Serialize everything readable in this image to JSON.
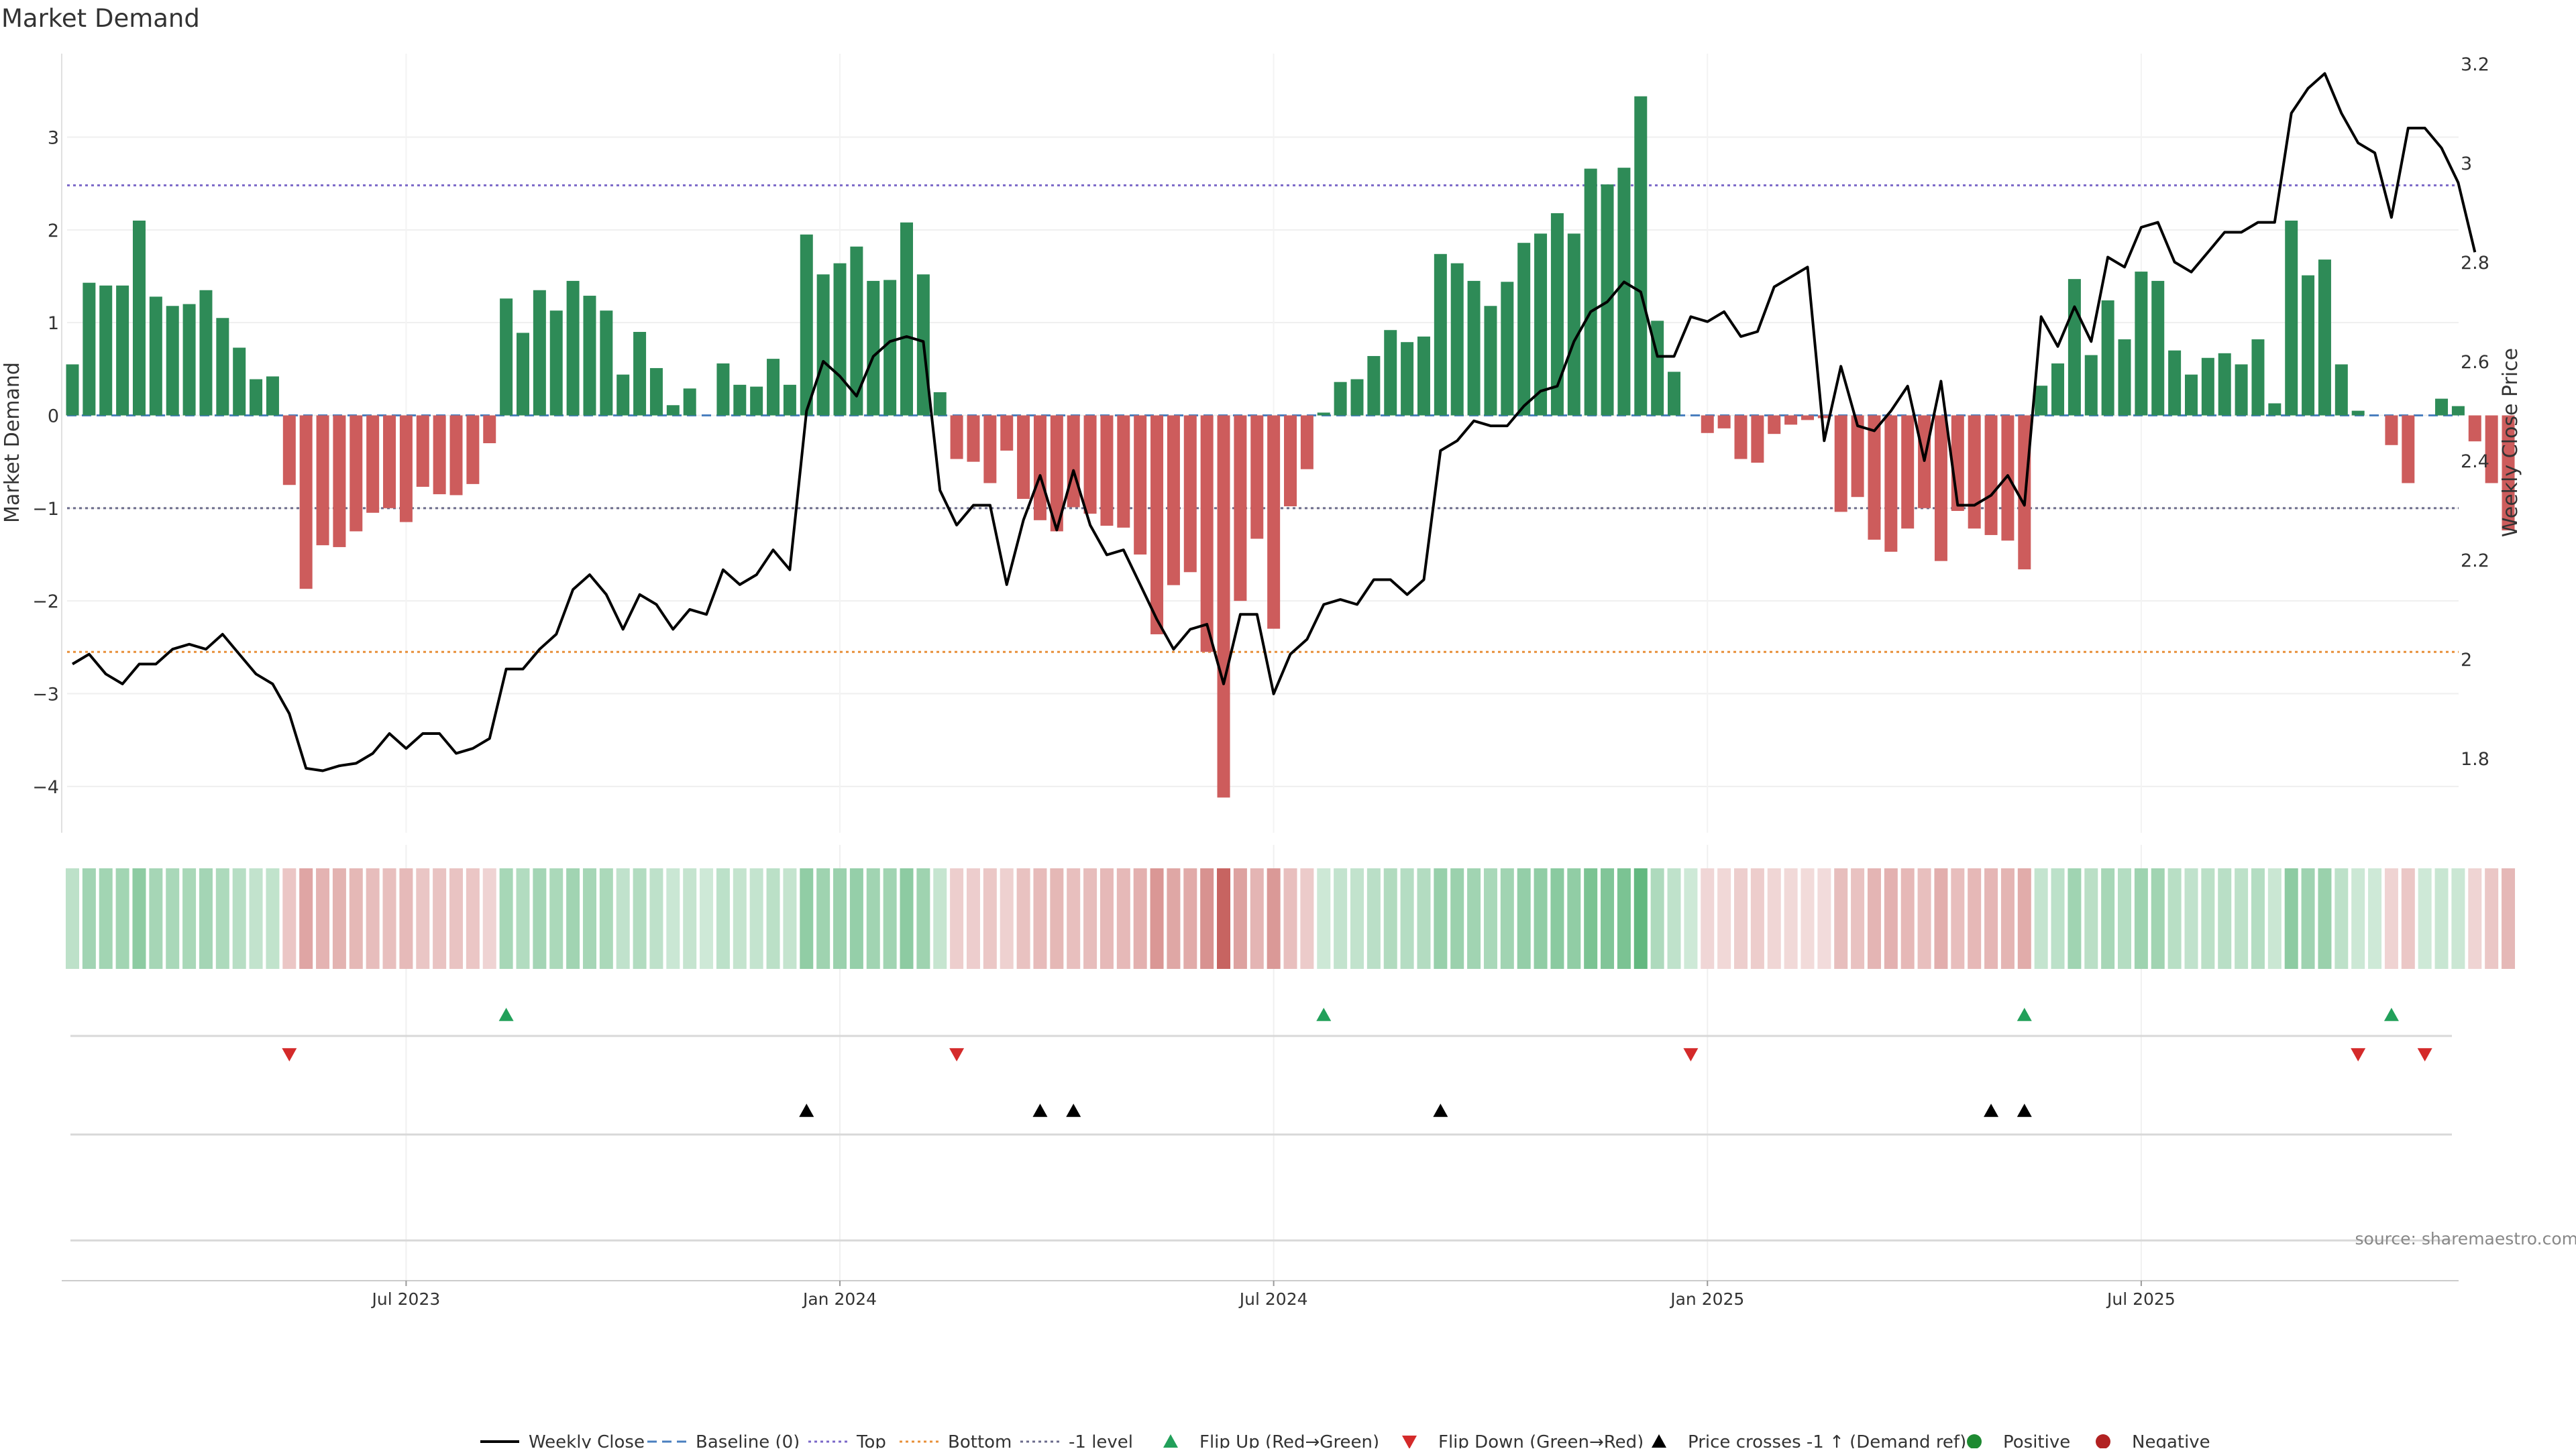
{
  "title": "Market Demand",
  "source_note": "source: sharemaestro.com",
  "chart_data": {
    "type": "bar",
    "title": "Market Demand",
    "ylabel": "Market Demand",
    "y2label": "Weekly Close Price",
    "ylim": [
      -4.5,
      3.9
    ],
    "y2lim": [
      1.65,
      3.22
    ],
    "yticks": [
      -4,
      -3,
      -2,
      -1,
      0,
      1,
      2,
      3
    ],
    "y2ticks": [
      1.8,
      2,
      2.2,
      2.4,
      2.6,
      2.8,
      3,
      3.2
    ],
    "x_ticks": [
      {
        "label": "Jul 2023",
        "week": 20
      },
      {
        "label": "Jan 2024",
        "week": 46
      },
      {
        "label": "Jul 2024",
        "week": 72
      },
      {
        "label": "Jan 2025",
        "week": 98
      },
      {
        "label": "Jul 2025",
        "week": 124
      }
    ],
    "reference_lines": [
      {
        "name": "Top",
        "value": 2.48,
        "color": "#7b68c8"
      },
      {
        "name": "Bottom",
        "value": -2.55,
        "color": "#e8903a"
      },
      {
        "name": "-1 level",
        "value": -1,
        "color": "#6b6b8b"
      }
    ],
    "demand": [
      0.55,
      1.43,
      1.4,
      1.4,
      2.1,
      1.28,
      1.18,
      1.2,
      1.35,
      1.05,
      0.73,
      0.39,
      0.42,
      -0.75,
      -1.87,
      -1.4,
      -1.42,
      -1.25,
      -1.05,
      -1.0,
      -1.15,
      -0.77,
      -0.85,
      -0.86,
      -0.74,
      -0.3,
      1.26,
      0.89,
      1.35,
      1.13,
      1.45,
      1.29,
      1.13,
      0.44,
      0.9,
      0.51,
      0.11,
      0.29,
      0.0,
      0.56,
      0.33,
      0.31,
      0.61,
      0.33,
      1.95,
      1.52,
      1.64,
      1.82,
      1.45,
      1.46,
      2.08,
      1.52,
      0.25,
      -0.47,
      -0.5,
      -0.73,
      -0.38,
      -0.9,
      -1.13,
      -1.25,
      -0.99,
      -1.06,
      -1.19,
      -1.21,
      -1.5,
      -2.36,
      -1.83,
      -1.69,
      -2.55,
      -4.12,
      -2.0,
      -1.33,
      -2.3,
      -0.98,
      -0.58,
      0.03,
      0.36,
      0.39,
      0.64,
      0.92,
      0.79,
      0.85,
      1.74,
      1.64,
      1.45,
      1.18,
      1.44,
      1.86,
      1.96,
      2.18,
      1.96,
      2.66,
      2.49,
      2.67,
      3.44,
      1.02,
      0.47,
      0.0,
      -0.19,
      -0.14,
      -0.47,
      -0.51,
      -0.2,
      -0.1,
      -0.05,
      -0.03,
      -1.04,
      -0.88,
      -1.34,
      -1.47,
      -1.22,
      -1.0,
      -1.57,
      -1.03,
      -1.22,
      -1.29,
      -1.35,
      -1.66,
      0.32,
      0.56,
      1.47,
      0.65,
      1.24,
      0.82,
      1.55,
      1.45,
      0.7,
      0.44,
      0.62,
      0.67,
      0.55,
      0.82,
      0.13,
      2.1,
      1.51,
      1.68,
      0.55,
      0.05,
      0.0,
      -0.32,
      -0.73,
      0.0,
      0.18,
      0.1,
      -0.28,
      -0.73,
      -1.24
    ],
    "close": [
      1.99,
      2.01,
      1.97,
      1.95,
      1.99,
      1.99,
      2.02,
      2.03,
      2.02,
      2.05,
      2.01,
      1.97,
      1.95,
      1.89,
      1.78,
      1.775,
      1.785,
      1.79,
      1.81,
      1.85,
      1.82,
      1.85,
      1.85,
      1.81,
      1.82,
      1.84,
      1.98,
      1.98,
      2.02,
      2.05,
      2.14,
      2.17,
      2.13,
      2.06,
      2.13,
      2.11,
      2.06,
      2.1,
      2.09,
      2.18,
      2.15,
      2.17,
      2.22,
      2.18,
      2.5,
      2.6,
      2.57,
      2.53,
      2.61,
      2.64,
      2.65,
      2.64,
      2.34,
      2.27,
      2.31,
      2.31,
      2.15,
      2.28,
      2.37,
      2.26,
      2.38,
      2.27,
      2.21,
      2.22,
      2.15,
      2.08,
      2.02,
      2.06,
      2.07,
      1.95,
      2.09,
      2.09,
      1.93,
      2.01,
      2.04,
      2.11,
      2.12,
      2.11,
      2.16,
      2.16,
      2.13,
      2.16,
      2.42,
      2.44,
      2.48,
      2.47,
      2.47,
      2.51,
      2.54,
      2.55,
      2.64,
      2.7,
      2.72,
      2.76,
      2.74,
      2.61,
      2.61,
      2.69,
      2.68,
      2.7,
      2.65,
      2.66,
      2.75,
      2.77,
      2.79,
      2.44,
      2.59,
      2.47,
      2.46,
      2.5,
      2.55,
      2.4,
      2.56,
      2.31,
      2.31,
      2.33,
      2.37,
      2.31,
      2.69,
      2.63,
      2.71,
      2.64,
      2.81,
      2.79,
      2.87,
      2.88,
      2.8,
      2.78,
      2.82,
      2.86,
      2.86,
      2.88,
      2.88,
      3.1,
      3.15,
      3.18,
      3.1,
      3.04,
      3.02,
      2.89,
      3.07,
      3.07,
      3.03,
      2.96,
      2.82
    ]
  },
  "markers": {
    "flip_up_weeks": [
      26,
      75,
      117,
      139
    ],
    "flip_down_weeks": [
      13,
      53,
      97,
      137,
      141
    ],
    "price_cross_weeks": [
      44,
      58,
      60,
      82,
      115,
      117
    ]
  },
  "legend": [
    {
      "label": "Weekly Close",
      "kind": "solid-line",
      "color": "#000000"
    },
    {
      "label": "Baseline (0)",
      "kind": "dash-line",
      "color": "#4a7fbf"
    },
    {
      "label": "Top",
      "kind": "dot-line",
      "color": "#7b68c8"
    },
    {
      "label": "Bottom",
      "kind": "dot-line",
      "color": "#e8903a"
    },
    {
      "label": "-1 level",
      "kind": "dot-line",
      "color": "#6b6b8b"
    },
    {
      "label": "Flip Up (Red→Green)",
      "kind": "tri-up",
      "color": "#22a05a"
    },
    {
      "label": "Flip Down (Green→Red)",
      "kind": "tri-down",
      "color": "#d42a2a"
    },
    {
      "label": "Price crosses -1 ↑ (Demand ref)",
      "kind": "tri-up",
      "color": "#000000"
    },
    {
      "label": "Positive",
      "kind": "dot",
      "color": "#1e8a32"
    },
    {
      "label": "Negative",
      "kind": "dot",
      "color": "#b22222"
    }
  ],
  "colors": {
    "positive_bar": "#2e8b57",
    "negative_bar": "#cd5c5c",
    "price_line": "#000000"
  }
}
